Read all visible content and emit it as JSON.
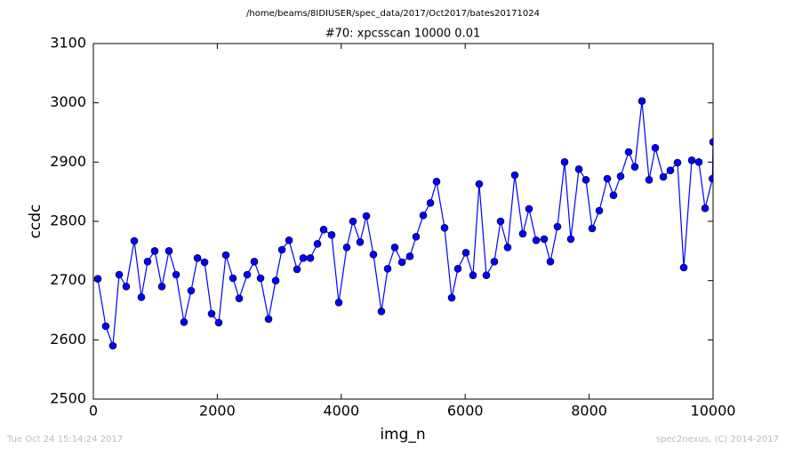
{
  "chart_data": {
    "type": "line",
    "title": "/home/beams/8IDIUSER/spec_data/2017/Oct2017/bates20171024",
    "subtitle": "#70: xpcsscan 10000 0.01",
    "x_label": "img_n",
    "y_label": "ccdc",
    "footer_left": "Tue Oct 24 15:14:24 2017",
    "footer_right": "spec2nexus, (C) 2014-2017",
    "series": [
      {
        "color": "#0000ff",
        "x": [
          72,
          200,
          315,
          416,
          530,
          660,
          775,
          875,
          990,
          1105,
          1220,
          1335,
          1463,
          1578,
          1680,
          1794,
          1908,
          2023,
          2138,
          2253,
          2353,
          2483,
          2597,
          2698,
          2827,
          2942,
          3042,
          3157,
          3286,
          3386,
          3501,
          3616,
          3716,
          3845,
          3960,
          4089,
          4189,
          4304,
          4405,
          4519,
          4648,
          4749,
          4864,
          4979,
          5108,
          5208,
          5323,
          5438,
          5538,
          5667,
          5782,
          5882,
          6011,
          6126,
          6226,
          6341,
          6470,
          6571,
          6685,
          6800,
          6929,
          7030,
          7145,
          7274,
          7374,
          7489,
          7604,
          7704,
          7834,
          7948,
          8049,
          8164,
          8293,
          8393,
          8508,
          8637,
          8737,
          8852,
          8967,
          9067,
          9197,
          9311,
          9426,
          9527,
          9656,
          9770,
          9871,
          9990,
          10000
        ],
        "values": [
          2703,
          2623,
          2590,
          2710,
          2690,
          2767,
          2672,
          2732,
          2750,
          2690,
          2750,
          2710,
          2630,
          2683,
          2738,
          2731,
          2644,
          2629,
          2743,
          2704,
          2670,
          2710,
          2732,
          2704,
          2635,
          2700,
          2752,
          2768,
          2719,
          2738,
          2738,
          2762,
          2786,
          2777,
          2663,
          2756,
          2800,
          2765,
          2809,
          2744,
          2648,
          2720,
          2756,
          2731,
          2741,
          2774,
          2810,
          2831,
          2867,
          2789,
          2671,
          2720,
          2747,
          2709,
          2863,
          2709,
          2732,
          2800,
          2756,
          2878,
          2779,
          2821,
          2768,
          2770,
          2732,
          2791,
          2900,
          2770,
          2888,
          2870,
          2788,
          2818,
          2872,
          2844,
          2876,
          2917,
          2892,
          3003,
          2870,
          2924,
          2875,
          2886,
          2899,
          2722,
          2903,
          2900,
          2822,
          2872,
          2934
        ]
      }
    ],
    "xlim": [
      0,
      10000
    ],
    "xticks": [
      0,
      2000,
      4000,
      6000,
      8000,
      10000
    ],
    "ylim": [
      2500,
      3100
    ],
    "yticks": [
      2500,
      2600,
      2700,
      2800,
      2900,
      3000,
      3100
    ]
  }
}
